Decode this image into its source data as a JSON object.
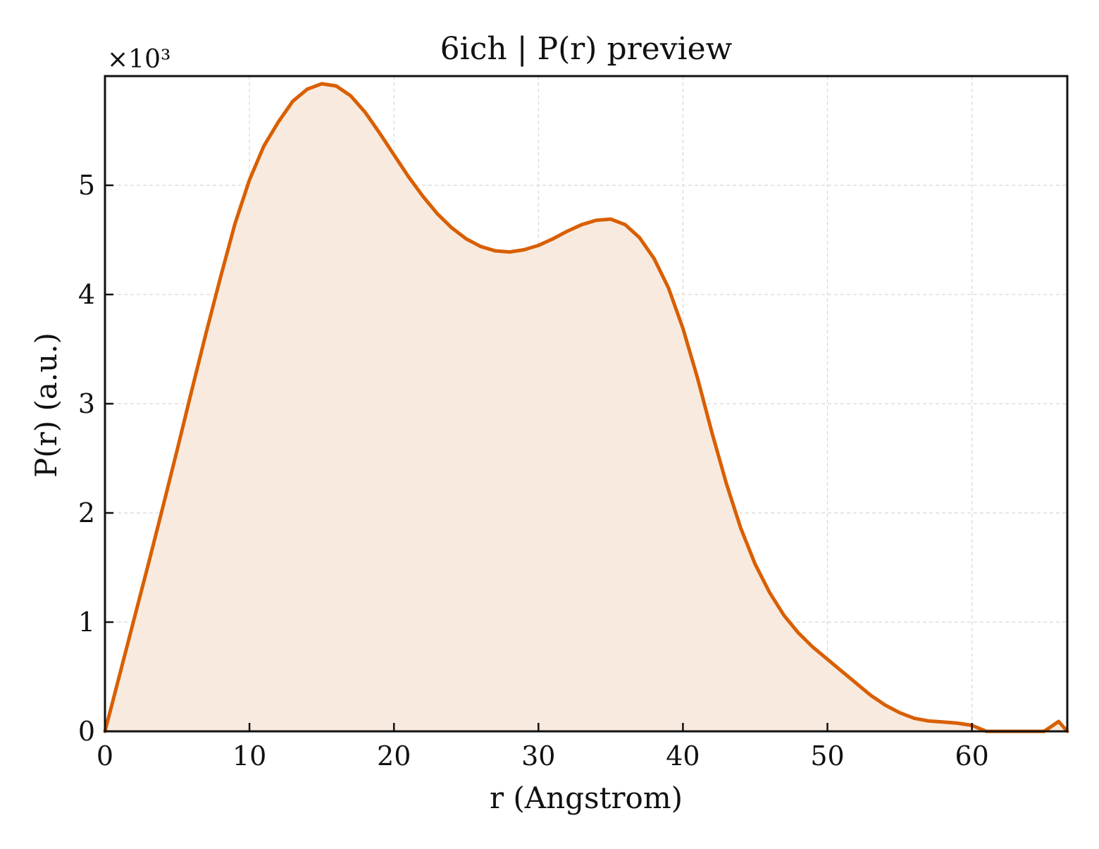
{
  "chart_data": {
    "type": "area",
    "title": "6ich | P(r) preview",
    "xlabel": "r (Angstrom)",
    "ylabel": "P(r) (a.u.)",
    "y_multiplier_label": "×10³",
    "xlim": [
      0,
      66.6
    ],
    "ylim": [
      0,
      6.0
    ],
    "y_scale_factor": 1000,
    "xticks": [
      0,
      10,
      20,
      30,
      40,
      50,
      60
    ],
    "yticks": [
      0,
      1,
      2,
      3,
      4,
      5
    ],
    "grid": true,
    "line_color": "#d95f02",
    "fill_color": "#f8eadf",
    "series": [
      {
        "x": [
          0,
          1.0,
          2.0,
          3.0,
          4.0,
          5.0,
          6.0,
          7.0,
          8.0,
          9.0,
          10.0,
          11.0,
          12.0,
          13.0,
          14.0,
          15.0,
          16.0,
          17.0,
          18.0,
          19.0,
          20.0,
          21.0,
          22.0,
          23.0,
          24.0,
          25.0,
          26.0,
          27.0,
          28.0,
          29.0,
          30.0,
          31.0,
          32.0,
          33.0,
          34.0,
          35.0,
          36.0,
          37.0,
          38.0,
          39.0,
          40.0,
          41.0,
          42.0,
          43.0,
          44.0,
          45.0,
          46.0,
          47.0,
          48.0,
          49.0,
          50.0,
          51.0,
          52.0,
          53.0,
          54.0,
          55.0,
          56.0,
          57.0,
          58.0,
          59.0,
          60.0,
          61.0,
          62.0,
          63.0,
          64.0,
          65.0,
          66.0,
          66.6
        ],
        "values": [
          0.0,
          0.51,
          1.02,
          1.53,
          2.05,
          2.58,
          3.12,
          3.65,
          4.16,
          4.65,
          5.05,
          5.36,
          5.58,
          5.77,
          5.88,
          5.93,
          5.91,
          5.82,
          5.67,
          5.48,
          5.28,
          5.08,
          4.9,
          4.74,
          4.61,
          4.51,
          4.44,
          4.4,
          4.39,
          4.41,
          4.45,
          4.51,
          4.58,
          4.64,
          4.68,
          4.69,
          4.64,
          4.52,
          4.33,
          4.06,
          3.69,
          3.24,
          2.74,
          2.27,
          1.86,
          1.53,
          1.27,
          1.06,
          0.9,
          0.77,
          0.66,
          0.55,
          0.44,
          0.33,
          0.24,
          0.17,
          0.12,
          0.095,
          0.085,
          0.075,
          0.055,
          0.0,
          0.0,
          -0.02,
          -0.04,
          0.0,
          0.09,
          0.0
        ]
      }
    ]
  }
}
